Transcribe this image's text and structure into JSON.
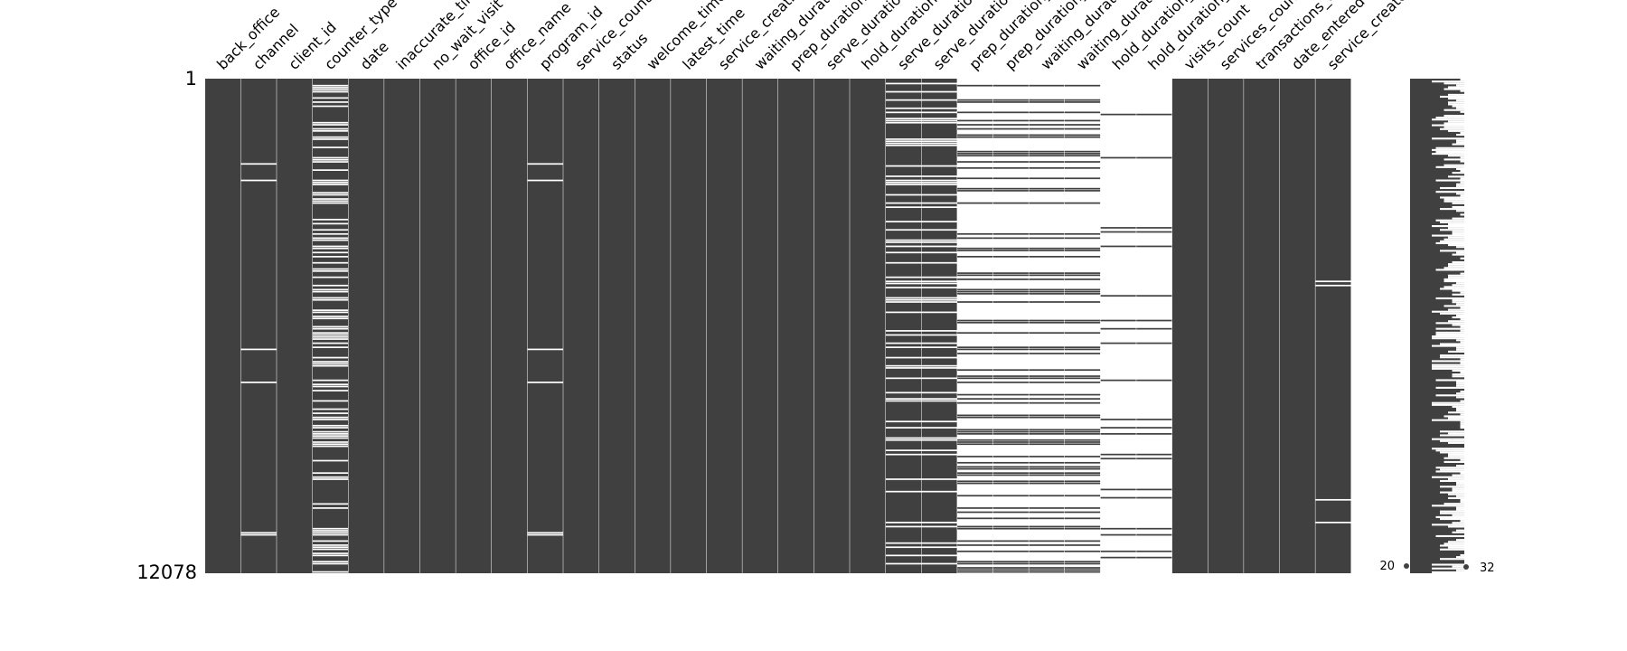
{
  "chart_data": {
    "type": "heatmap",
    "title": "",
    "description_kind": "missing-value matrix",
    "row_count": 12078,
    "row_labels": [
      "1",
      "12078"
    ],
    "columns": [
      {
        "name": "back_office",
        "label": "back_office",
        "present": 1.0
      },
      {
        "name": "channel",
        "label": "channel",
        "present": 0.97
      },
      {
        "name": "client_id",
        "label": "client_id",
        "present": 1.0
      },
      {
        "name": "counter_type",
        "label": "counter_type",
        "present": 0.6
      },
      {
        "name": "date",
        "label": "date",
        "present": 1.0
      },
      {
        "name": "inaccurate_time",
        "label": "inaccurate_time",
        "present": 1.0
      },
      {
        "name": "no_wait_visit",
        "label": "no_wait_visit",
        "present": 1.0
      },
      {
        "name": "office_id",
        "label": "office_id",
        "present": 1.0
      },
      {
        "name": "office_name",
        "label": "office_name",
        "present": 1.0
      },
      {
        "name": "program_id",
        "label": "program_id",
        "present": 0.97
      },
      {
        "name": "service_count",
        "label": "service_count",
        "present": 1.0
      },
      {
        "name": "status",
        "label": "status",
        "present": 1.0
      },
      {
        "name": "welcome_time",
        "label": "welcome_time",
        "present": 1.0
      },
      {
        "name": "latest_time",
        "label": "latest_time",
        "present": 1.0
      },
      {
        "name": "service_creation_time",
        "label": "service_creation_time",
        "present": 1.0
      },
      {
        "name": "waiting_duration",
        "label": "waiting_duration",
        "present": 1.0
      },
      {
        "name": "prep_duration",
        "label": "prep_duration",
        "present": 1.0
      },
      {
        "name": "serve_duration",
        "label": "serve_duration",
        "present": 1.0
      },
      {
        "name": "hold_duration",
        "label": "hold_duration",
        "present": 1.0
      },
      {
        "name": "serve_duration_total",
        "label": "serve_duration_total",
        "present": 0.8
      },
      {
        "name": "serve_duration_mean",
        "label": "serve_duration_mean",
        "present": 0.8
      },
      {
        "name": "prep_duration_total",
        "label": "prep_duration_total",
        "present": 0.3
      },
      {
        "name": "prep_duration_mean",
        "label": "prep_duration_mean",
        "present": 0.3
      },
      {
        "name": "waiting_duration_total",
        "label": "waiting_duration_total",
        "present": 0.3
      },
      {
        "name": "waiting_duration_mean",
        "label": "waiting_duration_mean",
        "present": 0.3
      },
      {
        "name": "hold_duration_total",
        "label": "hold_duration_total",
        "present": 0.08
      },
      {
        "name": "hold_duration_mean",
        "label": "hold_duration_mean",
        "present": 0.08
      },
      {
        "name": "visits_count",
        "label": "visits_count",
        "present": 1.0
      },
      {
        "name": "services_count",
        "label": "services_count",
        "present": 1.0
      },
      {
        "name": "transactions_count",
        "label": "transactions_count",
        "present": 1.0
      },
      {
        "name": "date_entered",
        "label": "date_entered",
        "present": 1.0
      },
      {
        "name": "service_created",
        "label": "service_created",
        "present": 0.98
      }
    ],
    "sparkline": {
      "min_label": "20",
      "max_label": "32",
      "min": 20,
      "max": 32
    },
    "colors": {
      "present": "#404040",
      "missing": "#ffffff",
      "text": "#000000"
    }
  }
}
